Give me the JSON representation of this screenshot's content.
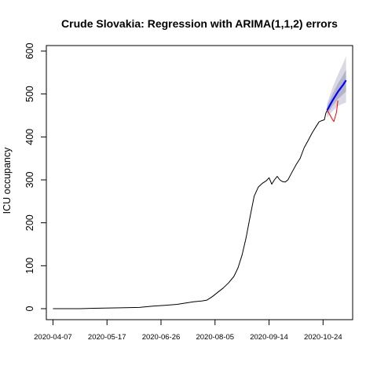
{
  "chart_data": {
    "type": "line",
    "title": "Crude Slovakia: Regression with ARIMA(1,1,2) errors",
    "xlabel": "",
    "ylabel": "ICU occupancy",
    "ylim": [
      0,
      600
    ],
    "yticks": [
      0,
      100,
      200,
      300,
      400,
      500,
      600
    ],
    "xticks": [
      "2020-04-07",
      "2020-05-17",
      "2020-06-26",
      "2020-08-05",
      "2020-09-14",
      "2020-10-24"
    ],
    "grid": false,
    "legend": "none",
    "colors": {
      "observed": "#000000",
      "forecast": "#0000ff",
      "actual_test": "#ff0000",
      "band_outer": "#d9d9e3",
      "band_inner": "#b3b3c9"
    },
    "series": [
      {
        "role": "observed",
        "points": [
          [
            "2020-04-07",
            0
          ],
          [
            "2020-04-27",
            0
          ],
          [
            "2020-05-07",
            1
          ],
          [
            "2020-05-27",
            2
          ],
          [
            "2020-06-10",
            3
          ],
          [
            "2020-06-20",
            6
          ],
          [
            "2020-06-30",
            8
          ],
          [
            "2020-07-08",
            10
          ],
          [
            "2020-07-14",
            13
          ],
          [
            "2020-07-20",
            16
          ],
          [
            "2020-07-26",
            18
          ],
          [
            "2020-07-30",
            20
          ],
          [
            "2020-08-03",
            28
          ],
          [
            "2020-08-07",
            38
          ],
          [
            "2020-08-11",
            48
          ],
          [
            "2020-08-15",
            60
          ],
          [
            "2020-08-19",
            75
          ],
          [
            "2020-08-22",
            95
          ],
          [
            "2020-08-25",
            125
          ],
          [
            "2020-08-28",
            165
          ],
          [
            "2020-08-31",
            215
          ],
          [
            "2020-09-03",
            262
          ],
          [
            "2020-09-06",
            283
          ],
          [
            "2020-09-09",
            292
          ],
          [
            "2020-09-12",
            298
          ],
          [
            "2020-09-14",
            305
          ],
          [
            "2020-09-16",
            290
          ],
          [
            "2020-09-18",
            300
          ],
          [
            "2020-09-20",
            308
          ],
          [
            "2020-09-22",
            300
          ],
          [
            "2020-09-24",
            296
          ],
          [
            "2020-09-26",
            295
          ],
          [
            "2020-09-28",
            300
          ],
          [
            "2020-10-01",
            318
          ],
          [
            "2020-10-04",
            335
          ],
          [
            "2020-10-07",
            350
          ],
          [
            "2020-10-10",
            375
          ],
          [
            "2020-10-13",
            392
          ],
          [
            "2020-10-16",
            410
          ],
          [
            "2020-10-19",
            425
          ],
          [
            "2020-10-21",
            435
          ],
          [
            "2020-10-23",
            438
          ],
          [
            "2020-10-25",
            440
          ],
          [
            "2020-10-26",
            455
          ],
          [
            "2020-10-27",
            462
          ]
        ]
      },
      {
        "role": "forecast",
        "points": [
          [
            "2020-10-27",
            462
          ],
          [
            "2020-10-31",
            485
          ],
          [
            "2020-11-04",
            505
          ],
          [
            "2020-11-08",
            522
          ],
          [
            "2020-11-10",
            532
          ]
        ]
      },
      {
        "role": "actual_test",
        "points": [
          [
            "2020-10-27",
            462
          ],
          [
            "2020-10-29",
            452
          ],
          [
            "2020-10-31",
            440
          ],
          [
            "2020-11-01",
            436
          ],
          [
            "2020-11-03",
            458
          ],
          [
            "2020-11-04",
            485
          ]
        ]
      }
    ],
    "bands": [
      {
        "level": "outer",
        "points": [
          [
            "2020-10-27",
            445,
            478
          ],
          [
            "2020-10-31",
            460,
            515
          ],
          [
            "2020-11-04",
            472,
            545
          ],
          [
            "2020-11-08",
            478,
            572
          ],
          [
            "2020-11-10",
            480,
            588
          ]
        ]
      },
      {
        "level": "inner",
        "points": [
          [
            "2020-10-27",
            452,
            472
          ],
          [
            "2020-10-31",
            472,
            500
          ],
          [
            "2020-11-04",
            488,
            524
          ],
          [
            "2020-11-08",
            500,
            545
          ],
          [
            "2020-11-10",
            506,
            556
          ]
        ]
      }
    ]
  }
}
